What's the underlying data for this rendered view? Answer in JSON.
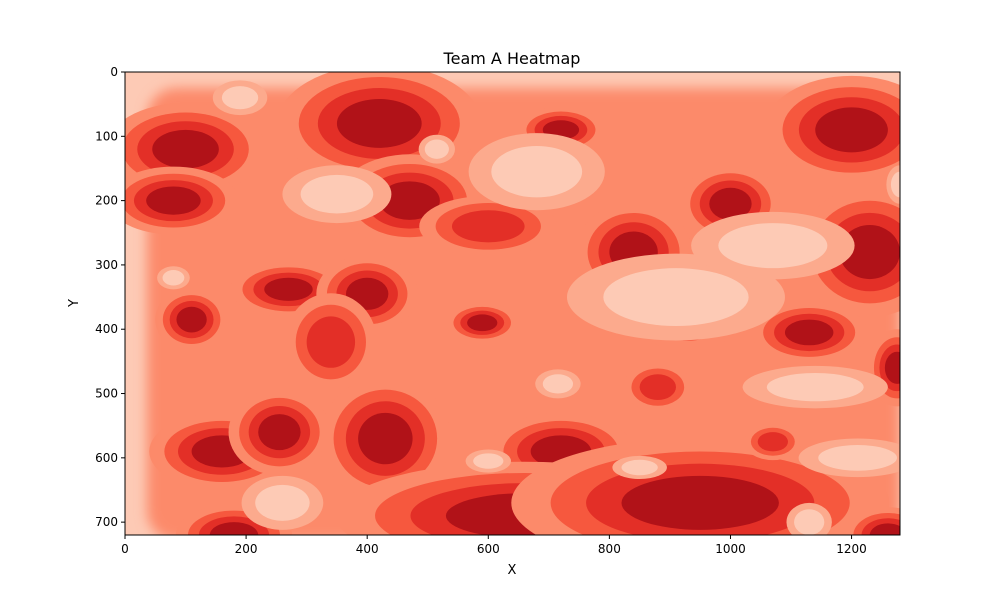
{
  "chart_data": {
    "type": "heatmap",
    "title": "Team A Heatmap",
    "xlabel": "X",
    "ylabel": "Y",
    "xlim": [
      0,
      1280
    ],
    "ylim": [
      720,
      0
    ],
    "y_inverted": true,
    "colormap": "Reds",
    "levels": [
      "#fdcab5",
      "#fcaa8d",
      "#fc8a6a",
      "#f6583e",
      "#e32f27",
      "#b11218"
    ],
    "xticks": [
      0,
      200,
      400,
      600,
      800,
      1000,
      1200
    ],
    "yticks": [
      0,
      100,
      200,
      300,
      400,
      500,
      600,
      700
    ],
    "blobs": [
      {
        "x": 100,
        "y": 120,
        "rx": 55,
        "ry": 30,
        "level": 5
      },
      {
        "x": 80,
        "y": 200,
        "rx": 45,
        "ry": 22,
        "level": 5
      },
      {
        "x": 420,
        "y": 80,
        "rx": 70,
        "ry": 38,
        "level": 5
      },
      {
        "x": 470,
        "y": 200,
        "rx": 50,
        "ry": 30,
        "level": 5
      },
      {
        "x": 720,
        "y": 90,
        "rx": 30,
        "ry": 15,
        "level": 5
      },
      {
        "x": 840,
        "y": 280,
        "rx": 40,
        "ry": 32,
        "level": 5
      },
      {
        "x": 1000,
        "y": 205,
        "rx": 35,
        "ry": 25,
        "level": 5
      },
      {
        "x": 1200,
        "y": 90,
        "rx": 60,
        "ry": 35,
        "level": 5
      },
      {
        "x": 1230,
        "y": 280,
        "rx": 50,
        "ry": 42,
        "level": 5
      },
      {
        "x": 270,
        "y": 338,
        "rx": 40,
        "ry": 18,
        "level": 5
      },
      {
        "x": 400,
        "y": 345,
        "rx": 35,
        "ry": 25,
        "level": 5
      },
      {
        "x": 110,
        "y": 385,
        "rx": 25,
        "ry": 20,
        "level": 5
      },
      {
        "x": 590,
        "y": 390,
        "rx": 25,
        "ry": 13,
        "level": 5
      },
      {
        "x": 1130,
        "y": 405,
        "rx": 40,
        "ry": 20,
        "level": 5
      },
      {
        "x": 1275,
        "y": 460,
        "rx": 20,
        "ry": 25,
        "level": 5
      },
      {
        "x": 160,
        "y": 590,
        "rx": 50,
        "ry": 25,
        "level": 5
      },
      {
        "x": 255,
        "y": 560,
        "rx": 35,
        "ry": 28,
        "level": 5
      },
      {
        "x": 430,
        "y": 570,
        "rx": 45,
        "ry": 40,
        "level": 5
      },
      {
        "x": 720,
        "y": 590,
        "rx": 50,
        "ry": 25,
        "level": 5
      },
      {
        "x": 660,
        "y": 690,
        "rx": 130,
        "ry": 35,
        "level": 5
      },
      {
        "x": 950,
        "y": 670,
        "rx": 130,
        "ry": 42,
        "level": 5
      },
      {
        "x": 180,
        "y": 720,
        "rx": 40,
        "ry": 20,
        "level": 5
      },
      {
        "x": 1260,
        "y": 720,
        "rx": 30,
        "ry": 18,
        "level": 5
      },
      {
        "x": 1070,
        "y": 575,
        "rx": 25,
        "ry": 15,
        "level": 4
      },
      {
        "x": 880,
        "y": 490,
        "rx": 30,
        "ry": 20,
        "level": 4
      },
      {
        "x": 340,
        "y": 420,
        "rx": 40,
        "ry": 40,
        "level": 4
      },
      {
        "x": 600,
        "y": 240,
        "rx": 60,
        "ry": 25,
        "level": 4
      },
      {
        "x": 930,
        "y": 360,
        "rx": 50,
        "ry": 40,
        "level": 4
      }
    ],
    "light_patches": [
      {
        "x": 680,
        "y": 155,
        "rx": 75,
        "ry": 40
      },
      {
        "x": 910,
        "y": 350,
        "rx": 120,
        "ry": 45
      },
      {
        "x": 1070,
        "y": 270,
        "rx": 90,
        "ry": 35
      },
      {
        "x": 1210,
        "y": 600,
        "rx": 65,
        "ry": 20
      },
      {
        "x": 1140,
        "y": 490,
        "rx": 80,
        "ry": 22
      },
      {
        "x": 350,
        "y": 190,
        "rx": 60,
        "ry": 30
      },
      {
        "x": 260,
        "y": 670,
        "rx": 45,
        "ry": 28
      },
      {
        "x": 190,
        "y": 40,
        "rx": 30,
        "ry": 18
      },
      {
        "x": 515,
        "y": 120,
        "rx": 20,
        "ry": 15
      },
      {
        "x": 715,
        "y": 485,
        "rx": 25,
        "ry": 15
      },
      {
        "x": 600,
        "y": 605,
        "rx": 25,
        "ry": 12
      },
      {
        "x": 850,
        "y": 615,
        "rx": 30,
        "ry": 12
      },
      {
        "x": 80,
        "y": 320,
        "rx": 18,
        "ry": 12
      },
      {
        "x": 1130,
        "y": 700,
        "rx": 25,
        "ry": 20
      },
      {
        "x": 1280,
        "y": 175,
        "rx": 15,
        "ry": 20
      }
    ]
  }
}
